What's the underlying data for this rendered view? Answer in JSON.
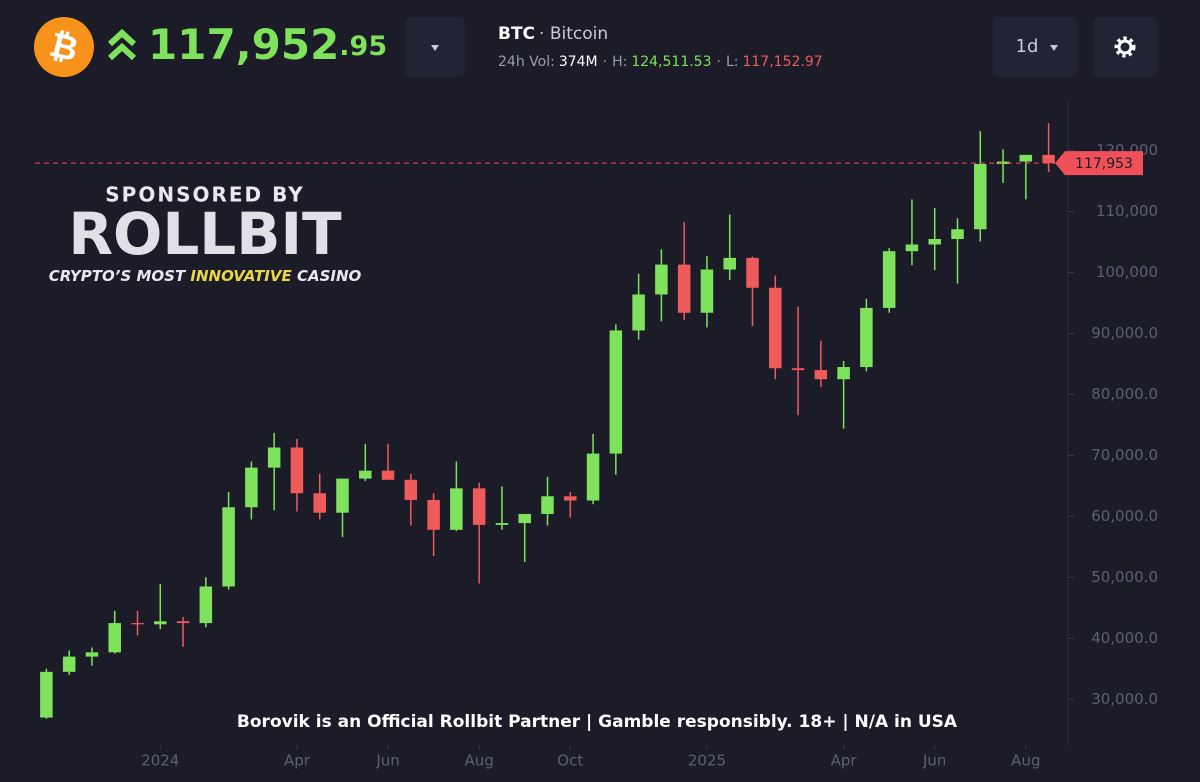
{
  "header": {
    "price": "117,952",
    "price_decimals": ".95",
    "symbol": "BTC",
    "name": "· Bitcoin",
    "separator": "·",
    "volume_label": "24h Vol:",
    "volume": "374M",
    "high_label": "H:",
    "high": "124,511.53",
    "low_label": "L:",
    "low": "117,152.97",
    "interval": "1d"
  },
  "sponsor": {
    "heading": "SPONSORED BY",
    "brand": "ROLLBIT",
    "tagline_start": "CRYPTO’S MOST ",
    "tagline_highlight": "INNOVATIVE",
    "tagline_end": " CASINO",
    "disclaimer": "Borovik is an Official Rollbit Partner | Gamble responsibly. 18+ | N/A in USA"
  },
  "chart_data": {
    "type": "candlestick",
    "up_color": "#7ee25c",
    "down_color": "#ef5a5a",
    "categories": [
      null,
      null,
      null,
      null,
      null,
      null,
      null,
      null,
      null,
      null,
      null,
      null,
      null,
      null,
      null,
      null,
      null,
      null,
      null,
      null,
      null,
      null,
      null,
      null,
      null,
      null,
      null,
      null,
      null,
      null,
      null,
      null,
      null,
      null,
      null,
      null,
      null,
      null,
      null,
      null,
      null,
      null,
      null,
      null,
      null
    ],
    "open": [
      27000,
      34500,
      37000,
      37700,
      42500,
      42300,
      42800,
      42500,
      48500,
      61500,
      68000,
      71300,
      63800,
      60600,
      66200,
      67500,
      66000,
      62700,
      57800,
      64600,
      58600,
      58900,
      60400,
      63300,
      62600,
      70300,
      90500,
      96400,
      101300,
      93400,
      100500,
      102400,
      97500,
      84300,
      84000,
      82500,
      84500,
      94200,
      103500,
      104600,
      105500,
      107100,
      117800,
      118200,
      119300
    ],
    "high": [
      35000,
      38000,
      38500,
      44500,
      44500,
      48900,
      43500,
      50000,
      64000,
      69000,
      73700,
      72700,
      67000,
      65500,
      71900,
      71900,
      67000,
      63800,
      69000,
      65500,
      64900,
      60000,
      66500,
      64000,
      73500,
      91500,
      99800,
      103800,
      108300,
      102700,
      109500,
      102600,
      99500,
      94400,
      88800,
      85500,
      95700,
      104000,
      112000,
      110600,
      108900,
      123200,
      120200,
      119000,
      124500
    ],
    "low": [
      26800,
      34000,
      35500,
      37500,
      40500,
      41500,
      38600,
      41800,
      48000,
      59500,
      61000,
      60800,
      59500,
      56600,
      65800,
      66000,
      58500,
      53500,
      57600,
      49000,
      57800,
      52500,
      58500,
      59800,
      62000,
      66800,
      89000,
      92000,
      92200,
      91000,
      98800,
      91200,
      82500,
      76600,
      81200,
      74400,
      83800,
      93400,
      101200,
      100400,
      98200,
      105100,
      114700,
      112000,
      116500
    ],
    "close": [
      34500,
      37000,
      37700,
      42500,
      42300,
      42800,
      42500,
      48500,
      61500,
      68000,
      71300,
      63800,
      60600,
      66200,
      67500,
      66000,
      62700,
      57800,
      64600,
      58600,
      58900,
      60400,
      63300,
      62600,
      70300,
      90500,
      96400,
      101300,
      93400,
      100500,
      102400,
      97500,
      84300,
      84000,
      82500,
      84500,
      94200,
      103500,
      104600,
      105500,
      107100,
      117800,
      118200,
      119300,
      117950
    ],
    "xlim": [
      -0.5,
      44.5
    ],
    "ylim": [
      22500,
      128300
    ],
    "xticks": [
      {
        "value": 5,
        "label": "2024"
      },
      {
        "value": 11,
        "label": "Apr"
      },
      {
        "value": 15,
        "label": "Jun"
      },
      {
        "value": 19,
        "label": "Aug"
      },
      {
        "value": 23,
        "label": "Oct"
      },
      {
        "value": 29,
        "label": "2025"
      },
      {
        "value": 35,
        "label": "Apr"
      },
      {
        "value": 39,
        "label": "Jun"
      },
      {
        "value": 43,
        "label": "Aug"
      }
    ],
    "yticks": [
      {
        "value": 30000,
        "label": "30,000.0"
      },
      {
        "value": 40000,
        "label": "40,000.0"
      },
      {
        "value": 50000,
        "label": "50,000.0"
      },
      {
        "value": 60000,
        "label": "60,000.0"
      },
      {
        "value": 70000,
        "label": "70,000.0"
      },
      {
        "value": 80000,
        "label": "80,000.0"
      },
      {
        "value": 90000,
        "label": "90,000.0"
      },
      {
        "value": 100000,
        "label": "100,000"
      },
      {
        "value": 110000,
        "label": "110,000"
      },
      {
        "value": 120000,
        "label": "120,000"
      }
    ],
    "last_price": {
      "value": 117953,
      "label": "117,953"
    },
    "last_price_color": "#f0505a"
  }
}
